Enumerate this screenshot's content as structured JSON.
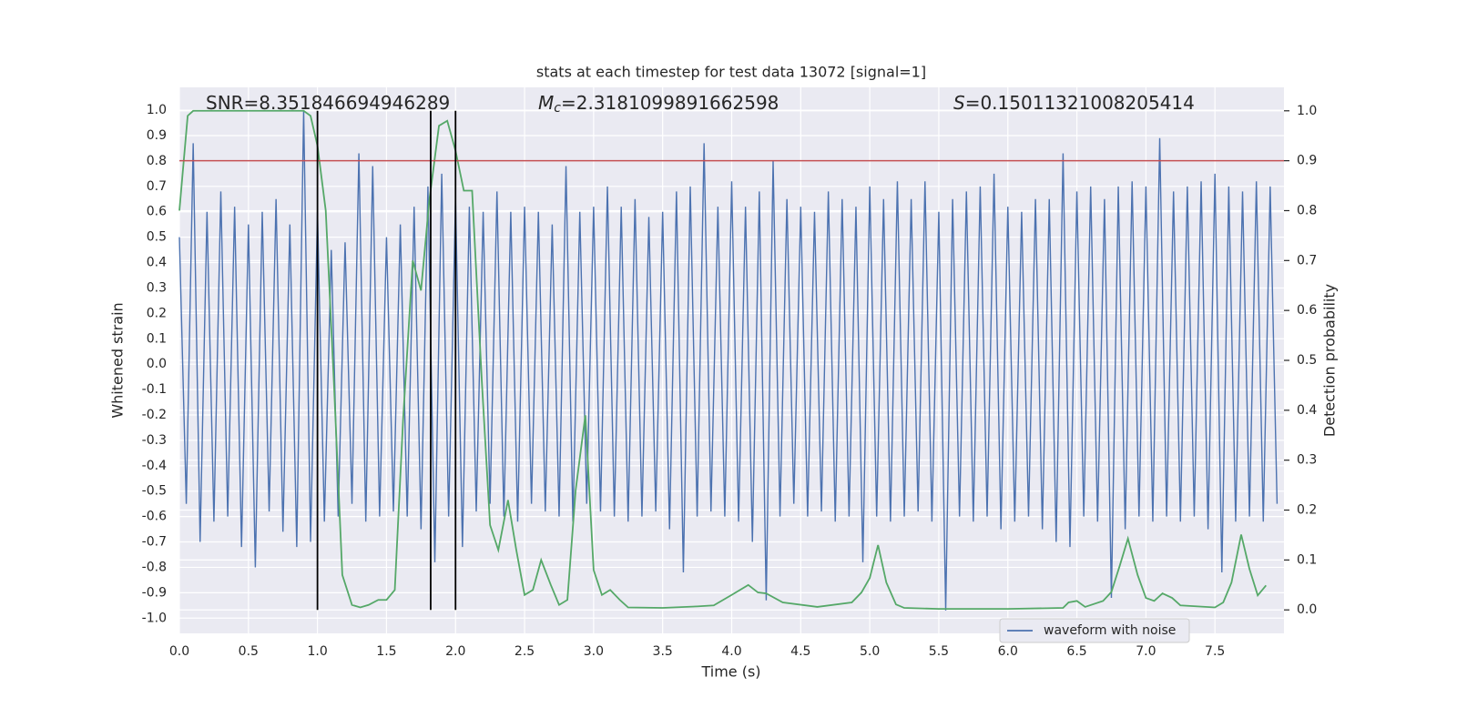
{
  "chart_data": {
    "type": "line",
    "title": "stats at each timestep for test data 13072 [signal=1]",
    "xlabel": "Time (s)",
    "ylabel": "Whitened strain",
    "y2label": "Detection probability",
    "xlim": [
      0,
      8
    ],
    "ylim": [
      -1.06,
      1.09
    ],
    "y2lim": [
      -0.047,
      1.047
    ],
    "xticks": [
      {
        "value": 0,
        "label": "0.0"
      },
      0.5,
      {
        "value": 1,
        "label": "1.0"
      },
      1.5,
      {
        "value": 2,
        "label": "2.0"
      },
      2.5,
      {
        "value": 3,
        "label": "3.0"
      },
      3.5,
      {
        "value": 4,
        "label": "4.0"
      },
      4.5,
      {
        "value": 5,
        "label": "5.0"
      },
      5.5,
      {
        "value": 6,
        "label": "6.0"
      },
      6.5,
      {
        "value": 7,
        "label": "7.0"
      },
      7.5
    ],
    "yticks": [
      {
        "value": -1,
        "label": "-1.0"
      },
      -0.9,
      -0.8,
      -0.7,
      -0.6,
      -0.5,
      -0.4,
      -0.3,
      -0.2,
      -0.1,
      {
        "value": 0,
        "label": "0.0"
      },
      0.1,
      0.2,
      0.3,
      0.4,
      0.5,
      0.6,
      0.7,
      0.8,
      0.9,
      {
        "value": 1,
        "label": "1.0"
      }
    ],
    "y2ticks": [
      {
        "value": 0,
        "label": "0.0"
      },
      0.1,
      0.2,
      0.3,
      0.4,
      0.5,
      0.6,
      0.7,
      0.8,
      0.9,
      {
        "value": 1,
        "label": "1.0"
      }
    ],
    "grid": true,
    "legend": "lower right",
    "series": [
      {
        "name": "waveform with noise",
        "color": "#4c72b0",
        "x": [
          0,
          0.05,
          0.1,
          0.15,
          0.2,
          0.25,
          0.3,
          0.35,
          0.4,
          0.45,
          0.5,
          0.55,
          0.6,
          0.65,
          0.7,
          0.75,
          0.8,
          0.85,
          0.9,
          0.95,
          1,
          1.05,
          1.1,
          1.15,
          1.2,
          1.25,
          1.3,
          1.35,
          1.4,
          1.45,
          1.5,
          1.55,
          1.6,
          1.65,
          1.7,
          1.75,
          1.8,
          1.85,
          1.9,
          1.95,
          2,
          2.05,
          2.1,
          2.15,
          2.2,
          2.25,
          2.3,
          2.35,
          2.4,
          2.45,
          2.5,
          2.55,
          2.6,
          2.65,
          2.7,
          2.75,
          2.8,
          2.85,
          2.9,
          2.95,
          3,
          3.05,
          3.1,
          3.15,
          3.2,
          3.25,
          3.3,
          3.35,
          3.4,
          3.45,
          3.5,
          3.55,
          3.6,
          3.65,
          3.7,
          3.75,
          3.8,
          3.85,
          3.9,
          3.95,
          4,
          4.05,
          4.1,
          4.15,
          4.2,
          4.25,
          4.3,
          4.35,
          4.4,
          4.45,
          4.5,
          4.55,
          4.6,
          4.65,
          4.7,
          4.75,
          4.8,
          4.85,
          4.9,
          4.95,
          5,
          5.05,
          5.1,
          5.15,
          5.2,
          5.25,
          5.3,
          5.35,
          5.4,
          5.45,
          5.5,
          5.55,
          5.6,
          5.65,
          5.7,
          5.75,
          5.8,
          5.85,
          5.9,
          5.95,
          6,
          6.05,
          6.1,
          6.15,
          6.2,
          6.25,
          6.3,
          6.35,
          6.4,
          6.45,
          6.5,
          6.55,
          6.6,
          6.65,
          6.7,
          6.75,
          6.8,
          6.85,
          6.9,
          6.95,
          7,
          7.05,
          7.1,
          7.15,
          7.2,
          7.25,
          7.3,
          7.35,
          7.4,
          7.45,
          7.5,
          7.55,
          7.6,
          7.65,
          7.7,
          7.75,
          7.8,
          7.85,
          7.9,
          7.95
        ],
        "values": [
          0.5,
          -0.55,
          0.87,
          -0.7,
          0.6,
          -0.62,
          0.68,
          -0.6,
          0.62,
          -0.72,
          0.55,
          -0.8,
          0.6,
          -0.58,
          0.65,
          -0.66,
          0.55,
          -0.72,
          1.0,
          -0.7,
          0.6,
          -0.62,
          0.45,
          -0.6,
          0.48,
          -0.55,
          0.83,
          -0.62,
          0.78,
          -0.6,
          0.5,
          -0.58,
          0.55,
          -0.6,
          0.62,
          -0.65,
          0.7,
          -0.78,
          0.75,
          -0.6,
          0.65,
          -0.72,
          0.62,
          -0.58,
          0.6,
          -0.55,
          0.68,
          -0.6,
          0.6,
          -0.62,
          0.62,
          -0.55,
          0.6,
          -0.58,
          0.55,
          -0.6,
          0.78,
          -0.62,
          0.6,
          -0.55,
          0.62,
          -0.58,
          0.7,
          -0.6,
          0.62,
          -0.62,
          0.65,
          -0.6,
          0.58,
          -0.58,
          0.6,
          -0.65,
          0.68,
          -0.82,
          0.7,
          -0.6,
          0.87,
          -0.58,
          0.62,
          -0.6,
          0.72,
          -0.62,
          0.62,
          -0.7,
          0.68,
          -0.93,
          0.8,
          -0.6,
          0.65,
          -0.55,
          0.62,
          -0.6,
          0.6,
          -0.58,
          0.68,
          -0.62,
          0.65,
          -0.6,
          0.62,
          -0.78,
          0.7,
          -0.6,
          0.65,
          -0.62,
          0.72,
          -0.6,
          0.65,
          -0.58,
          0.72,
          -0.62,
          0.6,
          -0.97,
          0.65,
          -0.6,
          0.68,
          -0.62,
          0.7,
          -0.6,
          0.75,
          -0.65,
          0.62,
          -0.62,
          0.6,
          -0.6,
          0.65,
          -0.65,
          0.65,
          -0.7,
          0.83,
          -0.72,
          0.68,
          -0.6,
          0.7,
          -0.62,
          0.65,
          -0.92,
          0.7,
          -0.65,
          0.72,
          -0.6,
          0.7,
          -0.62,
          0.89,
          -0.6,
          0.68,
          -0.62,
          0.7,
          -0.6,
          0.72,
          -0.65,
          0.75,
          -0.82,
          0.7,
          -0.62,
          0.68,
          -0.6,
          0.72,
          -0.62,
          0.7,
          -0.55
        ]
      }
    ],
    "y2_series": {
      "color": "#55a868",
      "axis": "y2",
      "x": [
        0,
        0.06,
        0.1,
        0.3,
        0.6,
        0.9,
        0.95,
        1.0,
        1.06,
        1.12,
        1.18,
        1.25,
        1.31,
        1.37,
        1.44,
        1.5,
        1.56,
        1.62,
        1.69,
        1.75,
        1.81,
        1.88,
        1.94,
        2.0,
        2.06,
        2.12,
        2.19,
        2.25,
        2.31,
        2.38,
        2.44,
        2.5,
        2.56,
        2.62,
        2.69,
        2.75,
        2.81,
        2.87,
        2.94,
        3.0,
        3.06,
        3.12,
        3.19,
        3.25,
        3.5,
        3.75,
        3.87,
        4.0,
        4.12,
        4.19,
        4.25,
        4.37,
        4.62,
        4.87,
        4.94,
        5.0,
        5.06,
        5.12,
        5.19,
        5.25,
        5.5,
        6.0,
        6.4,
        6.44,
        6.5,
        6.56,
        6.69,
        6.75,
        6.81,
        6.87,
        6.94,
        7.0,
        7.06,
        7.12,
        7.19,
        7.25,
        7.5,
        7.56,
        7.62,
        7.69,
        7.75,
        7.81,
        7.87
      ],
      "values": [
        0.8,
        0.99,
        1.0,
        1.0,
        1.0,
        1.0,
        0.99,
        0.93,
        0.8,
        0.45,
        0.07,
        0.01,
        0.005,
        0.01,
        0.02,
        0.02,
        0.04,
        0.38,
        0.7,
        0.64,
        0.82,
        0.97,
        0.98,
        0.92,
        0.84,
        0.84,
        0.46,
        0.17,
        0.12,
        0.22,
        0.12,
        0.03,
        0.04,
        0.1,
        0.05,
        0.01,
        0.02,
        0.24,
        0.39,
        0.08,
        0.03,
        0.04,
        0.02,
        0.005,
        0.004,
        0.007,
        0.009,
        0.03,
        0.05,
        0.035,
        0.033,
        0.015,
        0.006,
        0.015,
        0.035,
        0.064,
        0.13,
        0.055,
        0.011,
        0.004,
        0.002,
        0.002,
        0.004,
        0.015,
        0.018,
        0.006,
        0.018,
        0.036,
        0.088,
        0.143,
        0.07,
        0.024,
        0.018,
        0.033,
        0.024,
        0.009,
        0.005,
        0.015,
        0.055,
        0.151,
        0.082,
        0.029,
        0.049
      ]
    },
    "threshold": {
      "value": 0.9,
      "axis": "y2",
      "color": "#c44e52"
    },
    "vlines": {
      "x": [
        1.0,
        1.82,
        2.0
      ],
      "ymin": 0,
      "ymax": 1,
      "axis": "y2",
      "color": "#000000"
    },
    "annotations": [
      {
        "text": "SNR=8.351846694946289"
      },
      {
        "symbol": "M",
        "subscript": "c",
        "text": "=2.3181099891662598"
      },
      {
        "symbol": "S",
        "text": "=0.15011321008205414"
      }
    ]
  }
}
